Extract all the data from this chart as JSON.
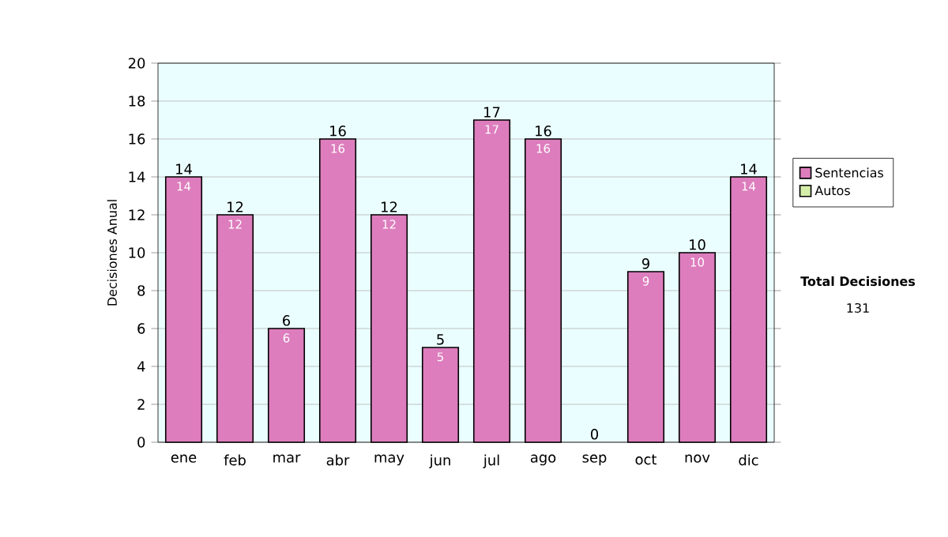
{
  "chart_data": {
    "type": "bar",
    "stacked": true,
    "ylabel": "Decisiones Anual",
    "categories": [
      "ene",
      "feb",
      "mar",
      "abr",
      "may",
      "jun",
      "jul",
      "ago",
      "sep",
      "oct",
      "nov",
      "dic"
    ],
    "series": [
      {
        "name": "Sentencias",
        "color": "#dd7dbd",
        "values": [
          14,
          12,
          6,
          16,
          12,
          5,
          17,
          16,
          0,
          9,
          10,
          14
        ],
        "value_labels": [
          "14",
          "12",
          "6",
          "16",
          "12",
          "5",
          "17",
          "16",
          null,
          "9",
          "10",
          "14"
        ]
      },
      {
        "name": "Autos",
        "color": "#d4eeaa",
        "values": [
          0,
          0,
          0,
          0,
          0,
          0,
          0,
          0,
          0,
          0,
          0,
          0
        ]
      }
    ],
    "totals": [
      "14",
      "12",
      "6",
      "16",
      "12",
      "5",
      "17",
      "16",
      "0",
      "9",
      "10",
      "14"
    ],
    "ylim": [
      0,
      20
    ],
    "yticks": [
      0,
      2,
      4,
      6,
      8,
      10,
      12,
      14,
      16,
      18,
      20
    ],
    "grid": "y",
    "legend": "right",
    "annotations": [
      "Total Decisiones",
      "131"
    ]
  }
}
